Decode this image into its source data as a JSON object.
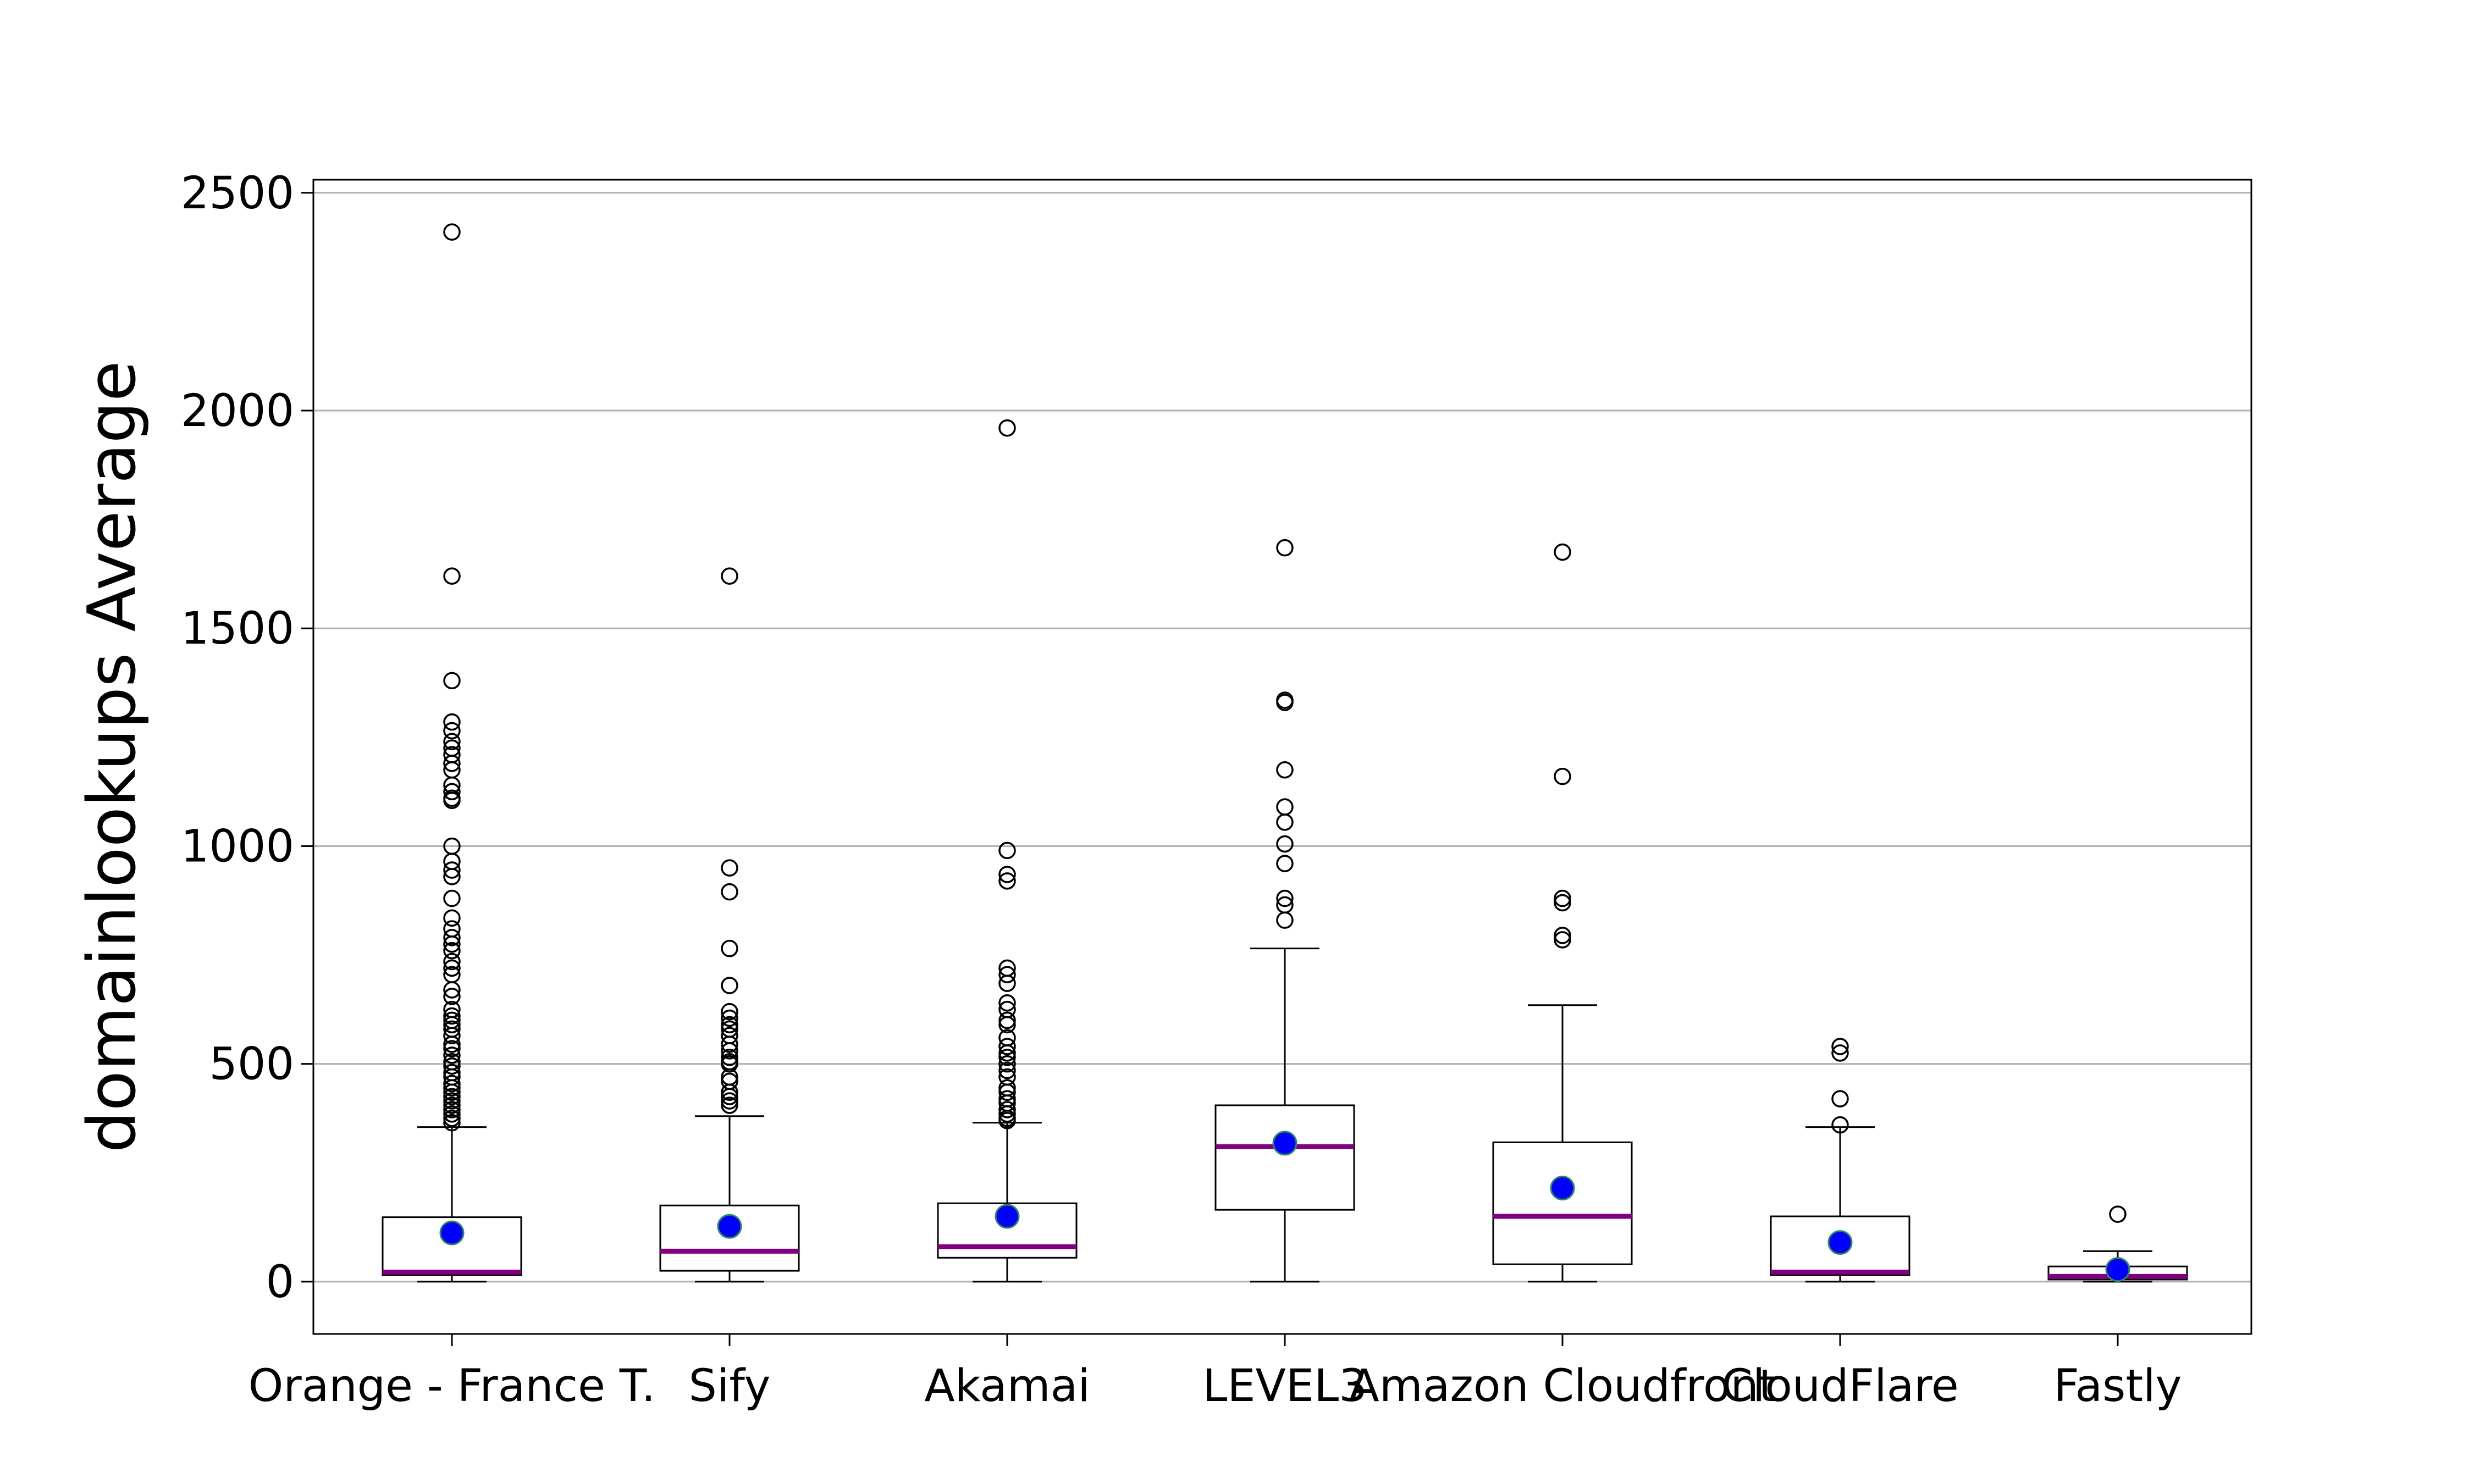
{
  "chart_data": {
    "type": "box",
    "title": "",
    "xlabel": "",
    "ylabel": "domainlookups Average",
    "ylim": [
      -120,
      2530
    ],
    "yticks": [
      0,
      500,
      1000,
      1500,
      2000,
      2500
    ],
    "grid": "horizontal",
    "colors": {
      "box_edge": "#000000",
      "median": "#800080",
      "mean_fill": "#0000ff",
      "mean_edge": "#2e8b57",
      "outlier_edge": "#000000",
      "grid": "#b0b0b0"
    },
    "categories": [
      "Orange - France T.",
      "Sify",
      "Akamai",
      "LEVEL3",
      "Amazon Cloudfront",
      "CloudFlare",
      "Fastly"
    ],
    "boxes": [
      {
        "name": "Orange - France T.",
        "whisker_low": 0,
        "q1": 15,
        "median": 22,
        "q3": 148,
        "whisker_high": 355,
        "mean": 112,
        "outliers": [
          2410,
          1620,
          1380,
          1285,
          1265,
          1240,
          1225,
          1210,
          1190,
          1175,
          1140,
          1125,
          1110,
          1105,
          1000,
          965,
          945,
          930,
          880,
          835,
          810,
          790,
          775,
          760,
          735,
          720,
          705,
          670,
          655,
          625,
          610,
          600,
          590,
          580,
          565,
          545,
          535,
          520,
          505,
          495,
          480,
          470,
          455,
          445,
          435,
          425,
          415,
          405,
          395,
          385,
          375,
          365
        ]
      },
      {
        "name": "Sify",
        "whisker_low": 0,
        "q1": 25,
        "median": 70,
        "q3": 175,
        "whisker_high": 380,
        "mean": 127,
        "outliers": [
          1620,
          950,
          895,
          765,
          680,
          620,
          605,
          590,
          580,
          565,
          545,
          530,
          515,
          505,
          500,
          470,
          460,
          435,
          425,
          415,
          405
        ]
      },
      {
        "name": "Akamai",
        "whisker_low": 0,
        "q1": 55,
        "median": 80,
        "q3": 180,
        "whisker_high": 365,
        "mean": 150,
        "outliers": [
          1960,
          990,
          935,
          920,
          720,
          705,
          685,
          640,
          625,
          600,
          590,
          560,
          540,
          525,
          515,
          500,
          485,
          470,
          445,
          435,
          420,
          410,
          395,
          385,
          375,
          370
        ]
      },
      {
        "name": "LEVEL3",
        "whisker_low": 0,
        "q1": 165,
        "median": 310,
        "q3": 405,
        "whisker_high": 765,
        "mean": 318,
        "outliers": [
          1685,
          1335,
          1330,
          1175,
          1090,
          1055,
          1005,
          960,
          880,
          865,
          830
        ]
      },
      {
        "name": "Amazon Cloudfront",
        "whisker_low": 0,
        "q1": 40,
        "median": 150,
        "q3": 320,
        "whisker_high": 635,
        "mean": 215,
        "outliers": [
          1675,
          1160,
          880,
          870,
          795,
          785
        ]
      },
      {
        "name": "CloudFlare",
        "whisker_low": 0,
        "q1": 15,
        "median": 22,
        "q3": 150,
        "whisker_high": 355,
        "mean": 90,
        "outliers": [
          540,
          525,
          420,
          360
        ]
      },
      {
        "name": "Fastly",
        "whisker_low": 0,
        "q1": 5,
        "median": 12,
        "q3": 35,
        "whisker_high": 70,
        "mean": 28,
        "outliers": [
          155
        ]
      }
    ]
  }
}
